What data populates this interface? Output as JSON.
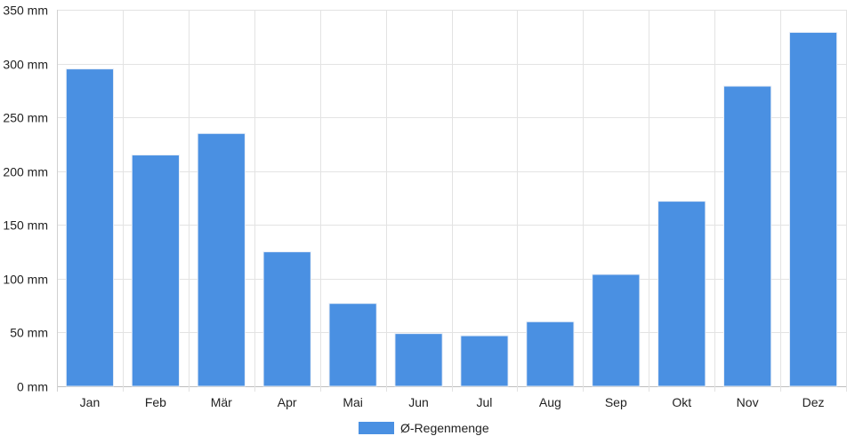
{
  "chart_data": {
    "type": "bar",
    "categories": [
      "Jan",
      "Feb",
      "Mär",
      "Apr",
      "Mai",
      "Jun",
      "Jul",
      "Aug",
      "Sep",
      "Okt",
      "Nov",
      "Dez"
    ],
    "series": [
      {
        "name": "Ø-Regenmenge",
        "values": [
          295,
          215,
          235,
          125,
          77,
          49,
          47,
          60,
          104,
          172,
          279,
          329
        ],
        "color": "#4a90e2"
      }
    ],
    "y_unit": "mm",
    "ylim": [
      0,
      350
    ],
    "y_ticks": [
      "0 mm",
      "50 mm",
      "100 mm",
      "150 mm",
      "200 mm",
      "250 mm",
      "300 mm",
      "350 mm"
    ],
    "y_tick_values": [
      0,
      50,
      100,
      150,
      200,
      250,
      300,
      350
    ],
    "grid": true,
    "legend_position": "bottom-center"
  }
}
